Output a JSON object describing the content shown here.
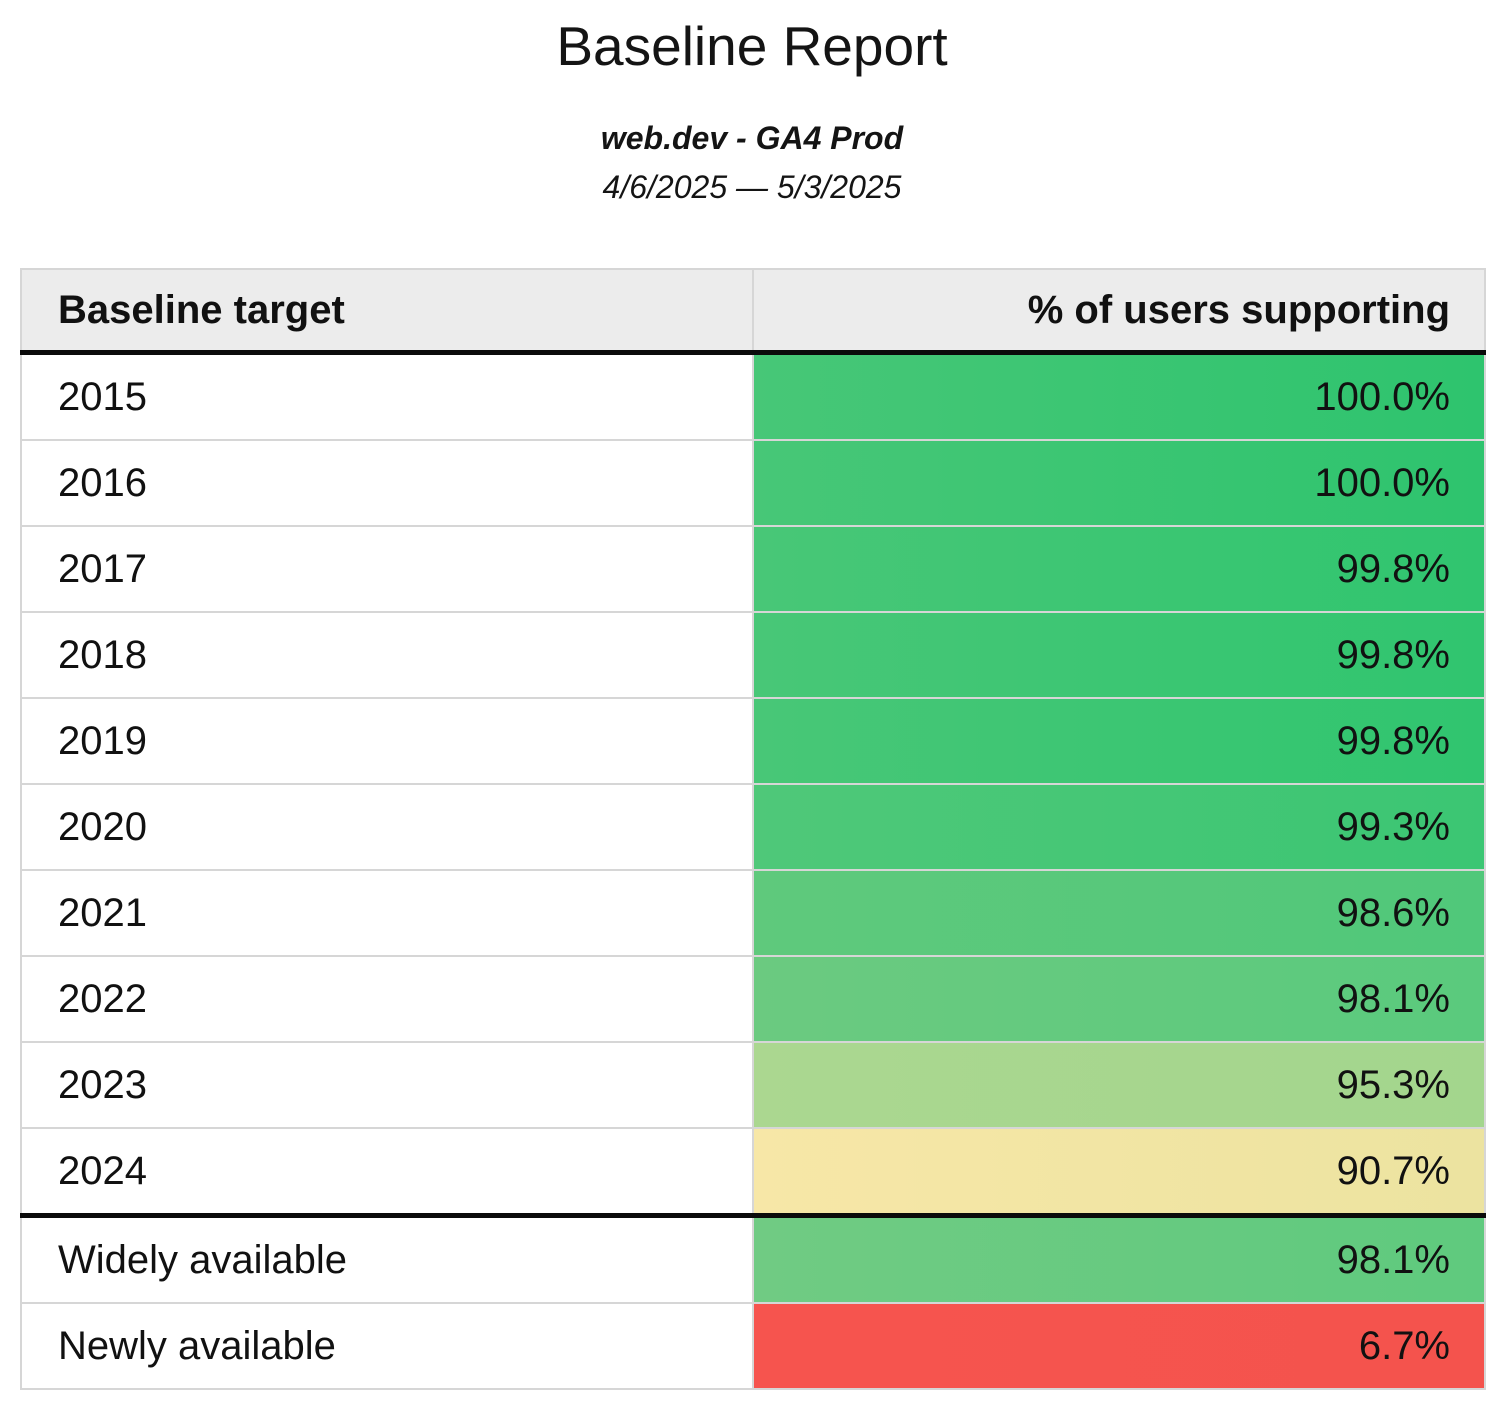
{
  "report": {
    "title": "Baseline Report",
    "subtitle": "web.dev - GA4 Prod",
    "date_range": "4/6/2025 — 5/3/2025"
  },
  "table": {
    "columns": {
      "target": "Baseline target",
      "percent": "% of users supporting"
    },
    "rows": [
      {
        "target": "2015",
        "value": "100.0%",
        "color_from": "#47c777",
        "color_to": "#2ec46e"
      },
      {
        "target": "2016",
        "value": "100.0%",
        "color_from": "#47c777",
        "color_to": "#2ec46e"
      },
      {
        "target": "2017",
        "value": "99.8%",
        "color_from": "#48c777",
        "color_to": "#30c56f"
      },
      {
        "target": "2018",
        "value": "99.8%",
        "color_from": "#48c777",
        "color_to": "#30c56f"
      },
      {
        "target": "2019",
        "value": "99.8%",
        "color_from": "#48c777",
        "color_to": "#30c56f"
      },
      {
        "target": "2020",
        "value": "99.3%",
        "color_from": "#4fc879",
        "color_to": "#3bc673"
      },
      {
        "target": "2021",
        "value": "98.6%",
        "color_from": "#5fc97c",
        "color_to": "#50c87a"
      },
      {
        "target": "2022",
        "value": "98.1%",
        "color_from": "#6bca80",
        "color_to": "#5aca7d"
      },
      {
        "target": "2023",
        "value": "95.3%",
        "color_from": "#abd790",
        "color_to": "#a3d68d"
      },
      {
        "target": "2024",
        "value": "90.7%",
        "color_from": "#f7e7a7",
        "color_to": "#ece3a0"
      },
      {
        "target": "Widely available",
        "value": "98.1%",
        "color_from": "#70cb83",
        "color_to": "#5fca7e"
      },
      {
        "target": "Newly available",
        "value": "6.7%",
        "color_from": "#f6544e",
        "color_to": "#f4534d"
      }
    ]
  },
  "chart_data": {
    "type": "table",
    "title": "Baseline Report",
    "subtitle": "web.dev - GA4 Prod",
    "date_range": "4/6/2025 — 5/3/2025",
    "columns": [
      "Baseline target",
      "% of users supporting"
    ],
    "rows": [
      [
        "2015",
        100.0
      ],
      [
        "2016",
        100.0
      ],
      [
        "2017",
        99.8
      ],
      [
        "2018",
        99.8
      ],
      [
        "2019",
        99.8
      ],
      [
        "2020",
        99.3
      ],
      [
        "2021",
        98.6
      ],
      [
        "2022",
        98.1
      ],
      [
        "2023",
        95.3
      ],
      [
        "2024",
        90.7
      ],
      [
        "Widely available",
        98.1
      ],
      [
        "Newly available",
        6.7
      ]
    ],
    "notes": "Percent cells are color-coded on a red-yellow-green scale by value; thick black rule separates year targets from availability summary rows."
  }
}
